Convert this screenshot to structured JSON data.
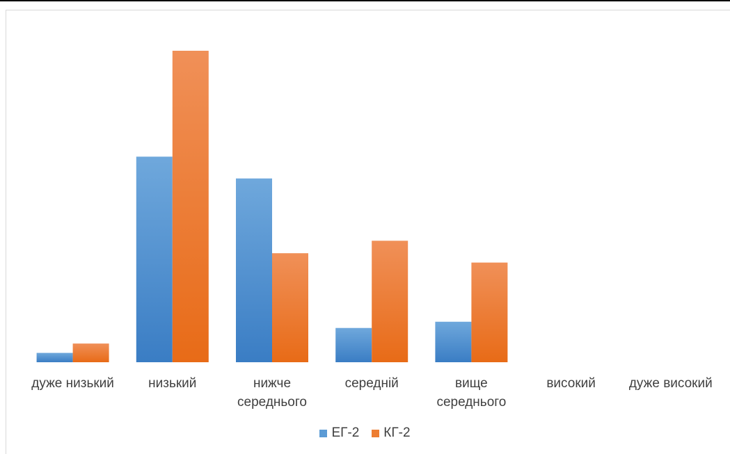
{
  "chart_data": {
    "type": "bar",
    "title": "",
    "xlabel": "",
    "ylabel": "",
    "categories": [
      [
        "дуже низький"
      ],
      [
        "низький"
      ],
      [
        "нижче",
        "середнього"
      ],
      [
        "середній"
      ],
      [
        "вище",
        "середнього"
      ],
      [
        "високий"
      ],
      [
        "дуже високий"
      ]
    ],
    "series": [
      {
        "name": "ЕГ-2",
        "color": "#5b9bd5",
        "values": [
          1.5,
          33,
          29.5,
          5.5,
          6.5,
          0,
          0
        ]
      },
      {
        "name": "КГ-2",
        "color": "#ed7d31",
        "values": [
          3,
          50,
          17.5,
          19.5,
          16,
          0,
          0
        ]
      }
    ],
    "ylim": [
      0,
      52
    ],
    "grid": false,
    "legend_position": "bottom"
  }
}
